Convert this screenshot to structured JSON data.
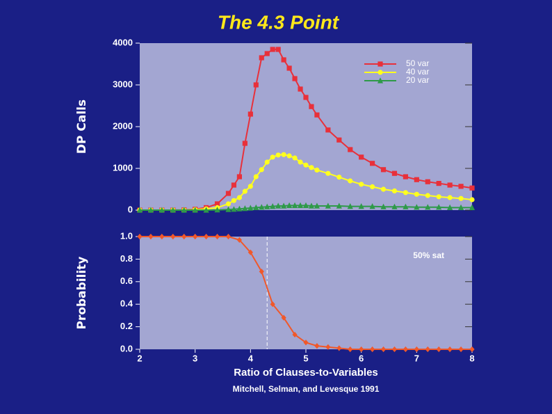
{
  "title": "The 4.3 Point",
  "citation": "Mitchell, Selman, and Levesque 1991",
  "chart_data": [
    {
      "type": "line",
      "y_label": "DP Calls",
      "legend": "upper right",
      "xlim": [
        2,
        8
      ],
      "ylim": [
        0,
        4000
      ],
      "yticks": [
        0,
        1000,
        2000,
        3000,
        4000
      ],
      "x": [
        2,
        2.2,
        2.4,
        2.6,
        2.8,
        3,
        3.2,
        3.4,
        3.6,
        3.7,
        3.8,
        3.9,
        4,
        4.1,
        4.2,
        4.3,
        4.4,
        4.5,
        4.6,
        4.7,
        4.8,
        4.9,
        5,
        5.1,
        5.2,
        5.4,
        5.6,
        5.8,
        6,
        6.2,
        6.4,
        6.6,
        6.8,
        7,
        7.2,
        7.4,
        7.6,
        7.8,
        8
      ],
      "series": [
        {
          "name": "50 var",
          "color": "#e8303a",
          "marker": "square",
          "values": [
            0,
            0,
            0,
            0,
            5,
            20,
            60,
            150,
            400,
            600,
            800,
            1600,
            2300,
            3000,
            3650,
            3750,
            3850,
            3850,
            3600,
            3400,
            3150,
            2900,
            2700,
            2480,
            2280,
            1920,
            1680,
            1450,
            1270,
            1120,
            970,
            880,
            800,
            730,
            680,
            640,
            600,
            570,
            530
          ]
        },
        {
          "name": "40 var",
          "color": "#ffff1e",
          "marker": "circle",
          "values": [
            0,
            0,
            0,
            0,
            0,
            10,
            30,
            60,
            150,
            230,
            300,
            450,
            570,
            800,
            970,
            1150,
            1270,
            1320,
            1330,
            1300,
            1250,
            1150,
            1080,
            1020,
            960,
            880,
            790,
            700,
            620,
            560,
            500,
            460,
            420,
            380,
            350,
            320,
            300,
            280,
            250
          ]
        },
        {
          "name": "20 var",
          "color": "#2e9a48",
          "marker": "triangle",
          "values": [
            0,
            0,
            0,
            0,
            0,
            0,
            0,
            5,
            15,
            20,
            30,
            40,
            50,
            60,
            70,
            80,
            90,
            100,
            100,
            110,
            110,
            110,
            110,
            100,
            100,
            100,
            100,
            90,
            90,
            90,
            80,
            80,
            80,
            70,
            70,
            70,
            60,
            60,
            60
          ]
        }
      ]
    },
    {
      "type": "line",
      "y_label": "Probability",
      "x_label": "Ratio of Clauses-to-Variables",
      "annotation": "50% sat",
      "vline": 4.3,
      "xlim": [
        2,
        8
      ],
      "xticks": [
        2,
        3,
        4,
        5,
        6,
        7,
        8
      ],
      "ylim": [
        0,
        1
      ],
      "yticks": [
        {
          "value": 0,
          "label": "0.0"
        },
        0.2,
        0.4,
        0.6,
        0.8,
        {
          "value": 1,
          "label": "1.0"
        }
      ],
      "x": [
        2,
        2.2,
        2.4,
        2.6,
        2.8,
        3,
        3.2,
        3.4,
        3.6,
        3.8,
        4,
        4.2,
        4.4,
        4.6,
        4.8,
        5,
        5.2,
        5.4,
        5.6,
        5.8,
        6,
        6.2,
        6.4,
        6.6,
        6.8,
        7,
        7.2,
        7.4,
        7.6,
        7.8,
        8
      ],
      "series": [
        {
          "color": "#f0582a",
          "marker": "diamond",
          "values": [
            1,
            1,
            1,
            1,
            1,
            1,
            1,
            1,
            1,
            0.97,
            0.86,
            0.69,
            0.4,
            0.28,
            0.13,
            0.06,
            0.03,
            0.02,
            0.01,
            0,
            0,
            0,
            0,
            0,
            0,
            0,
            0,
            0,
            0,
            0,
            0
          ]
        }
      ]
    }
  ]
}
